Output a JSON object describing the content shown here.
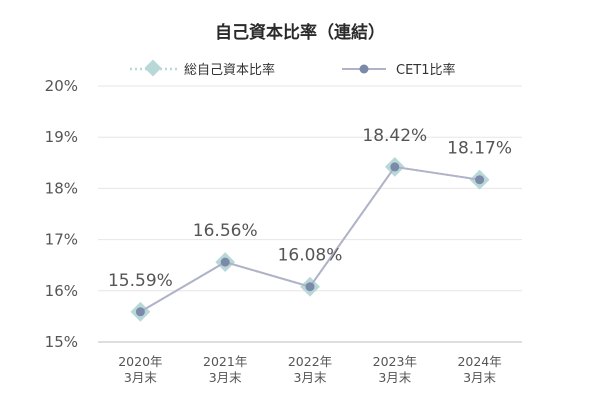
{
  "chart_data": {
    "type": "line",
    "title": "自己資本比率（連結）",
    "categories": [
      [
        "2020年",
        "3月末"
      ],
      [
        "2021年",
        "3月末"
      ],
      [
        "2022年",
        "3月末"
      ],
      [
        "2023年",
        "3月末"
      ],
      [
        "2024年",
        "3月末"
      ]
    ],
    "series": [
      {
        "name": "総自己資本比率",
        "marker": "diamond",
        "line_style": "dotted",
        "color": "#b8d8d8",
        "values": [
          15.59,
          16.56,
          16.08,
          18.42,
          18.17
        ]
      },
      {
        "name": "CET1比率",
        "marker": "circle",
        "line_style": "solid",
        "color": "#7a8aa8",
        "line_color": "#b0b3c8",
        "values": [
          15.59,
          16.56,
          16.08,
          18.42,
          18.17
        ]
      }
    ],
    "data_labels": [
      "15.59%",
      "16.56%",
      "16.08%",
      "18.42%",
      "18.17%"
    ],
    "ylim": [
      15,
      20
    ],
    "y_ticks": [
      15,
      16,
      17,
      18,
      19,
      20
    ],
    "y_tick_labels": [
      "15%",
      "16%",
      "17%",
      "18%",
      "19%",
      "20%"
    ],
    "grid": true,
    "legend_position": "top"
  }
}
